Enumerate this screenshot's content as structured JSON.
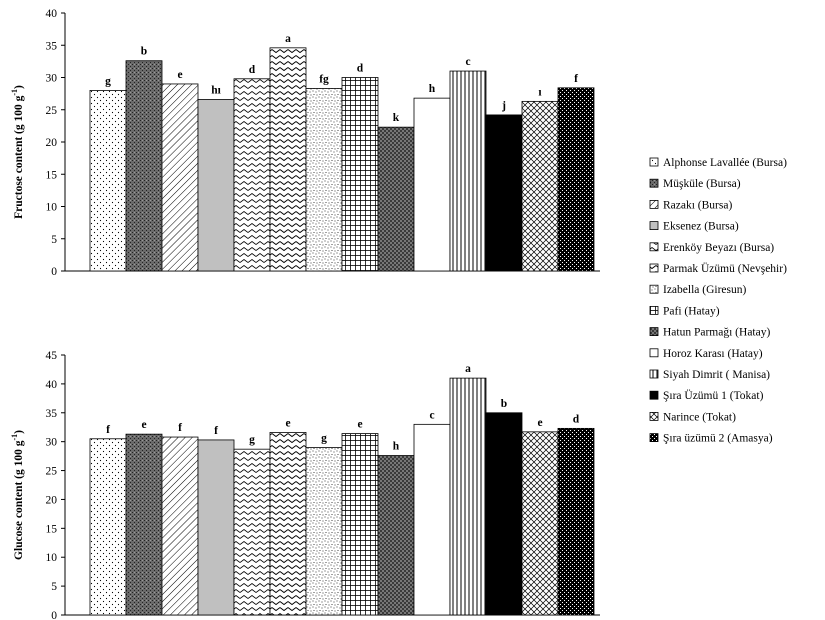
{
  "legend": [
    "Alphonse Lavallée (Bursa)",
    "Müşküle (Bursa)",
    "Razakı (Bursa)",
    "Eksenez (Bursa)",
    "Erenköy Beyazı (Bursa)",
    "Parmak Üzümü (Nevşehir)",
    "Izabella (Giresun)",
    "Pafi (Hatay)",
    "Hatun Parmağı (Hatay)",
    "Horoz Karası (Hatay)",
    "Siyah Dimrit ( Manisa)",
    "Şıra Üzümü 1 (Tokat)",
    "Narince (Tokat)",
    "Şıra üzümü 2 (Amasya)"
  ],
  "chart_data": [
    {
      "type": "bar",
      "ylabel_main": "Fructose content (g 100 g",
      "ylabel_sup": "-1",
      "ylabel_end": ")",
      "ylim": [
        0,
        40
      ],
      "yticks": [
        0,
        5,
        10,
        15,
        20,
        25,
        30,
        35,
        40
      ],
      "values": [
        28.0,
        32.6,
        29.0,
        26.6,
        29.8,
        34.6,
        28.3,
        30.0,
        22.3,
        26.8,
        31.0,
        24.2,
        26.3,
        28.4
      ],
      "letters": [
        "g",
        "b",
        "e",
        "hı",
        "d",
        "a",
        "fg",
        "d",
        "k",
        "h",
        "c",
        "j",
        "ı",
        "f"
      ]
    },
    {
      "type": "bar",
      "ylabel_main": "Glucose content (g 100 g",
      "ylabel_sup": "-1",
      "ylabel_end": ")",
      "ylim": [
        0,
        45
      ],
      "yticks": [
        0,
        5,
        10,
        15,
        20,
        25,
        30,
        35,
        40,
        45
      ],
      "values": [
        30.5,
        31.3,
        30.8,
        30.3,
        28.7,
        31.6,
        29.0,
        31.4,
        27.6,
        33.0,
        41.0,
        35.0,
        31.7,
        32.3
      ],
      "letters": [
        "f",
        "e",
        "f",
        "f",
        "g",
        "e",
        "g",
        "e",
        "h",
        "c",
        "a",
        "b",
        "e",
        "d"
      ]
    }
  ]
}
